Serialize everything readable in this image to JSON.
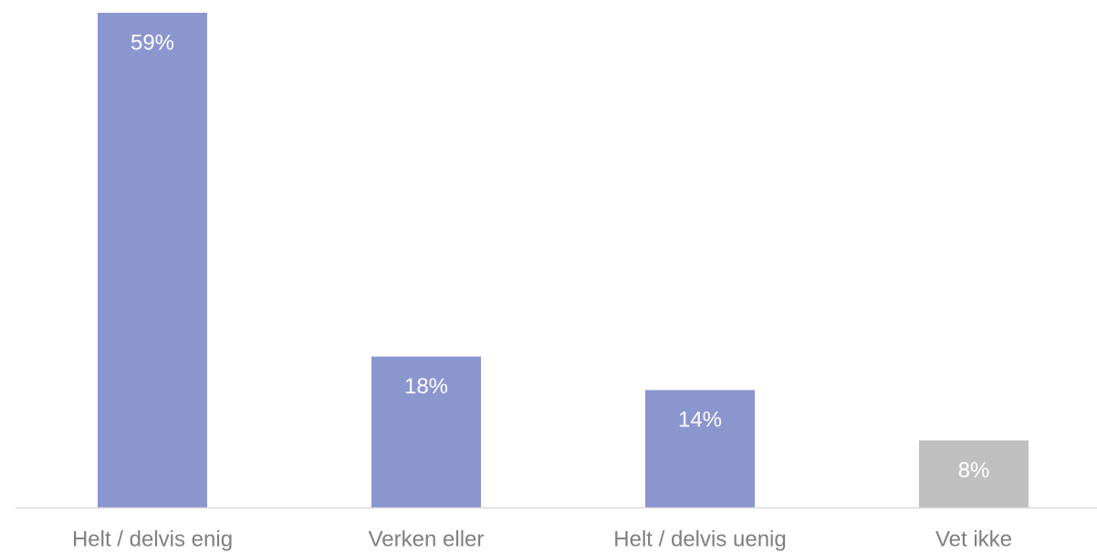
{
  "chart_data": {
    "type": "bar",
    "categories": [
      "Helt / delvis enig",
      "Verken eller",
      "Helt / delvis uenig",
      "Vet ikke"
    ],
    "values": [
      59,
      18,
      14,
      8
    ],
    "value_labels": [
      "59%",
      "18%",
      "14%",
      "8%"
    ],
    "colors": [
      "#8b96cf",
      "#8b96cf",
      "#8b96cf",
      "#bfbfbf"
    ]
  }
}
